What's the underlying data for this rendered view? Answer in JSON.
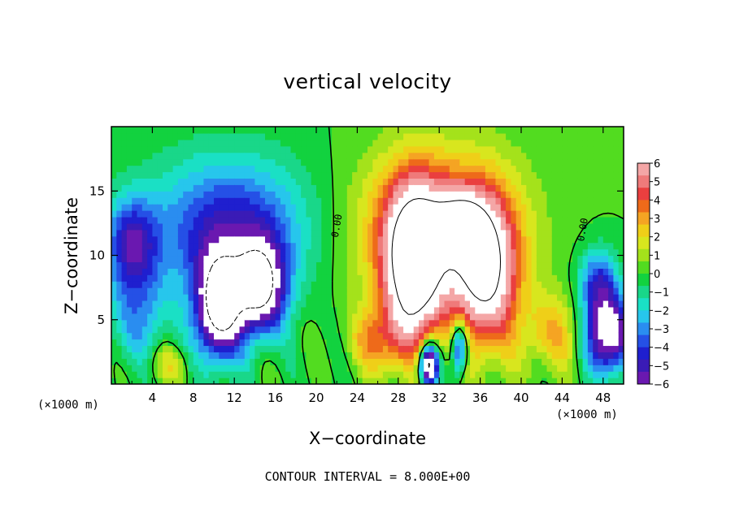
{
  "chart_data": {
    "type": "heatmap",
    "title": "vertical velocity",
    "xlabel": "X−coordinate",
    "ylabel": "Z−coordinate",
    "x_unit": "(×1000 m)",
    "xlim": [
      0,
      50
    ],
    "ylim": [
      0,
      20
    ],
    "x_ticks": [
      "4",
      "8",
      "12",
      "16",
      "20",
      "24",
      "28",
      "32",
      "36",
      "40",
      "44",
      "48"
    ],
    "x_tick_values": [
      4,
      8,
      12,
      16,
      20,
      24,
      28,
      32,
      36,
      40,
      44,
      48
    ],
    "y_ticks": [
      "5",
      "10",
      "15"
    ],
    "y_tick_values": [
      5,
      10,
      15
    ],
    "colorbar": {
      "labels": [
        "6",
        "5",
        "4",
        "3",
        "2",
        "1",
        "0",
        "−1",
        "−2",
        "−3",
        "−4",
        "−5",
        "−6"
      ],
      "range": [
        -6,
        6
      ],
      "colors": [
        "#f4a6a6",
        "#ef7a7a",
        "#ea3f3f",
        "#ee6a1a",
        "#f5a423",
        "#efcf18",
        "#d8e61e",
        "#a4e21b",
        "#52dc20",
        "#12d23f",
        "#19d789",
        "#1ae0c5",
        "#27c6ec",
        "#2a8df0",
        "#2550e6",
        "#1f1fcf",
        "#3a1bb6",
        "#6a18b0"
      ]
    },
    "contour_labels": [
      "0.00",
      "0.00"
    ],
    "contour_label_positions": [
      [
        22,
        12.3
      ],
      [
        46,
        12
      ]
    ],
    "contour_interval_text": "CONTOUR INTERVAL = 8.000E+00",
    "features": [
      {
        "kind": "downdraft",
        "x": 10.5,
        "z": 5.5,
        "w": -12
      },
      {
        "kind": "downdraft",
        "x": 14,
        "z": 6.5,
        "w": -11
      },
      {
        "kind": "updraft",
        "x": 29.5,
        "z": 8,
        "w": 12
      },
      {
        "kind": "updraft",
        "x": 37,
        "z": 7.5,
        "w": 11
      },
      {
        "kind": "downdraft",
        "x": 31,
        "z": 1.5,
        "w": -8
      },
      {
        "kind": "downdraft",
        "x": 49,
        "z": 3.5,
        "w": -7
      }
    ]
  }
}
